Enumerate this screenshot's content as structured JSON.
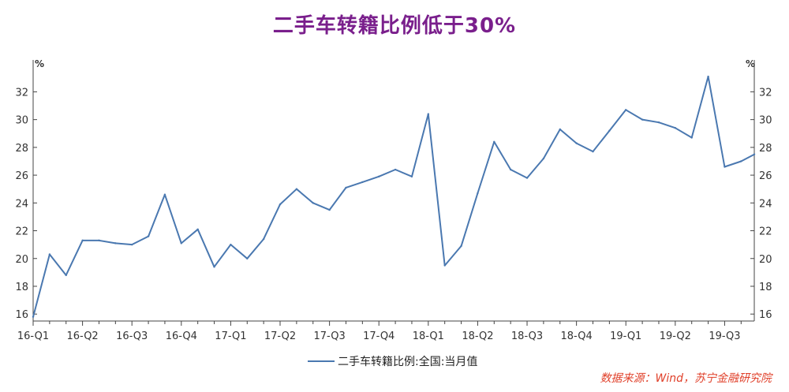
{
  "chart_data": {
    "type": "line",
    "title": "二手车转籍比例低于30%",
    "y_unit_left": "%",
    "y_unit_right": "%",
    "ylim": [
      15.5,
      33.5
    ],
    "y_ticks": [
      16,
      18,
      20,
      22,
      24,
      26,
      28,
      30,
      32
    ],
    "x_tick_labels": [
      "16-Q1",
      "16-Q2",
      "16-Q3",
      "16-Q4",
      "17-Q1",
      "17-Q2",
      "17-Q3",
      "17-Q4",
      "18-Q1",
      "18-Q2",
      "18-Q3",
      "18-Q4",
      "19-Q1",
      "19-Q2",
      "19-Q3"
    ],
    "x_tick_positions": [
      0,
      3,
      6,
      9,
      12,
      15,
      18,
      21,
      24,
      27,
      30,
      33,
      36,
      39,
      42
    ],
    "x_range": [
      0,
      43.8
    ],
    "series": [
      {
        "name": "二手车转籍比例:全国:当月值",
        "color": "#4a78b0",
        "x": [
          0,
          1,
          2,
          3,
          4,
          5,
          6,
          7,
          8,
          9,
          10,
          11,
          12,
          13,
          14,
          15,
          16,
          17,
          18,
          19,
          20,
          21,
          22,
          23,
          24,
          25,
          26,
          27,
          28,
          29,
          30,
          31,
          32,
          33,
          34,
          35,
          36,
          37,
          38,
          39,
          40,
          41,
          42,
          43,
          43.8
        ],
        "values": [
          15.8,
          20.3,
          18.8,
          21.3,
          21.3,
          21.1,
          21.0,
          21.6,
          24.6,
          21.1,
          22.1,
          19.4,
          21.0,
          20.0,
          21.4,
          23.9,
          25.0,
          24.0,
          23.5,
          25.1,
          25.5,
          25.9,
          26.4,
          25.9,
          30.4,
          19.5,
          20.9,
          24.7,
          28.4,
          26.4,
          25.8,
          27.2,
          29.3,
          28.3,
          27.7,
          29.2,
          30.7,
          30.0,
          29.8,
          29.4,
          28.7,
          33.1,
          26.6,
          27.0,
          27.5
        ]
      }
    ],
    "legend": "bottom-center",
    "grid": false
  },
  "source": "数据来源：Wind，苏宁金融研究院"
}
